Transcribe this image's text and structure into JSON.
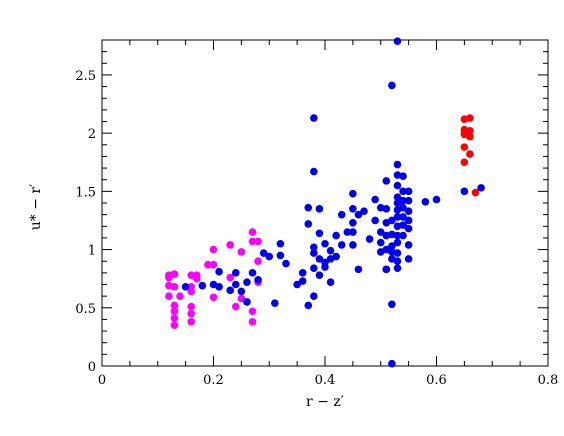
{
  "chart_data": {
    "type": "scatter",
    "title": "",
    "xlabel": "r − z′",
    "ylabel": "u* − r′",
    "xlim": [
      0,
      0.8
    ],
    "ylim": [
      0,
      2.8
    ],
    "x_ticks": [
      0,
      0.2,
      0.4,
      0.6,
      0.8
    ],
    "x_tick_labels": [
      "0",
      "0.2",
      "0.4",
      "0.6",
      "0.8"
    ],
    "y_ticks": [
      0,
      0.5,
      1,
      1.5,
      2,
      2.5
    ],
    "y_tick_labels": [
      "0",
      "0.5",
      "1",
      "1.5",
      "2",
      "2.5"
    ],
    "grid": false,
    "legend": "none",
    "series": [
      {
        "color": "#ff00ff",
        "points": [
          [
            0.12,
            0.78
          ],
          [
            0.12,
            0.76
          ],
          [
            0.13,
            0.79
          ],
          [
            0.12,
            0.69
          ],
          [
            0.13,
            0.68
          ],
          [
            0.12,
            0.6
          ],
          [
            0.14,
            0.6
          ],
          [
            0.13,
            0.52
          ],
          [
            0.13,
            0.47
          ],
          [
            0.13,
            0.41
          ],
          [
            0.13,
            0.35
          ],
          [
            0.16,
            0.78
          ],
          [
            0.17,
            0.78
          ],
          [
            0.16,
            0.68
          ],
          [
            0.16,
            0.64
          ],
          [
            0.16,
            0.51
          ],
          [
            0.16,
            0.45
          ],
          [
            0.16,
            0.38
          ],
          [
            0.17,
            0.75
          ],
          [
            0.19,
            0.87
          ],
          [
            0.2,
            0.87
          ],
          [
            0.2,
            1.0
          ],
          [
            0.2,
            0.59
          ],
          [
            0.23,
            1.04
          ],
          [
            0.23,
            0.76
          ],
          [
            0.24,
            0.51
          ],
          [
            0.25,
            0.98
          ],
          [
            0.25,
            0.58
          ],
          [
            0.27,
            1.15
          ],
          [
            0.27,
            1.07
          ],
          [
            0.28,
            1.07
          ],
          [
            0.27,
            0.47
          ],
          [
            0.27,
            0.38
          ],
          [
            0.28,
            0.72
          ],
          [
            0.28,
            0.9
          ]
        ]
      },
      {
        "color": "#0000ee",
        "points": [
          [
            0.15,
            0.68
          ],
          [
            0.18,
            0.69
          ],
          [
            0.2,
            0.7
          ],
          [
            0.21,
            0.81
          ],
          [
            0.21,
            0.68
          ],
          [
            0.23,
            0.65
          ],
          [
            0.24,
            0.8
          ],
          [
            0.24,
            0.7
          ],
          [
            0.25,
            0.64
          ],
          [
            0.26,
            0.72
          ],
          [
            0.26,
            0.55
          ],
          [
            0.27,
            0.8
          ],
          [
            0.28,
            0.74
          ],
          [
            0.29,
            0.97
          ],
          [
            0.3,
            0.94
          ],
          [
            0.31,
            0.54
          ],
          [
            0.32,
            1.05
          ],
          [
            0.32,
            0.95
          ],
          [
            0.33,
            0.88
          ],
          [
            0.35,
            0.7
          ],
          [
            0.36,
            0.8
          ],
          [
            0.36,
            0.73
          ],
          [
            0.37,
            1.36
          ],
          [
            0.37,
            1.22
          ],
          [
            0.37,
            0.52
          ],
          [
            0.38,
            2.13
          ],
          [
            0.38,
            1.67
          ],
          [
            0.38,
            1.02
          ],
          [
            0.38,
            0.97
          ],
          [
            0.38,
            0.84
          ],
          [
            0.38,
            0.6
          ],
          [
            0.39,
            1.35
          ],
          [
            0.39,
            1.14
          ],
          [
            0.39,
            0.92
          ],
          [
            0.39,
            0.78
          ],
          [
            0.4,
            1.05
          ],
          [
            0.4,
            0.89
          ],
          [
            0.4,
            0.85
          ],
          [
            0.41,
            0.99
          ],
          [
            0.41,
            0.92
          ],
          [
            0.41,
            0.72
          ],
          [
            0.42,
            1.12
          ],
          [
            0.42,
            0.94
          ],
          [
            0.43,
            1.3
          ],
          [
            0.43,
            1.04
          ],
          [
            0.44,
            1.15
          ],
          [
            0.45,
            1.48
          ],
          [
            0.45,
            1.35
          ],
          [
            0.45,
            1.23
          ],
          [
            0.45,
            1.15
          ],
          [
            0.45,
            1.04
          ],
          [
            0.46,
            0.83
          ],
          [
            0.46,
            1.3
          ],
          [
            0.47,
            1.33
          ],
          [
            0.48,
            1.09
          ],
          [
            0.49,
            1.43
          ],
          [
            0.49,
            1.25
          ],
          [
            0.5,
            1.36
          ],
          [
            0.5,
            1.15
          ],
          [
            0.5,
            1.06
          ],
          [
            0.5,
            0.98
          ],
          [
            0.51,
            0.83
          ],
          [
            0.51,
            1.0
          ],
          [
            0.51,
            0.83
          ],
          [
            0.51,
            1.12
          ],
          [
            0.51,
            1.23
          ],
          [
            0.51,
            1.59
          ],
          [
            0.51,
            1.35
          ],
          [
            0.52,
            1.25
          ],
          [
            0.52,
            1.13
          ],
          [
            0.52,
            1.03
          ],
          [
            0.52,
            0.98
          ],
          [
            0.52,
            0.92
          ],
          [
            0.52,
            2.41
          ],
          [
            0.52,
            0.53
          ],
          [
            0.52,
            0.02
          ],
          [
            0.53,
            2.79
          ],
          [
            0.53,
            1.73
          ],
          [
            0.53,
            1.64
          ],
          [
            0.53,
            1.55
          ],
          [
            0.53,
            1.45
          ],
          [
            0.53,
            1.4
          ],
          [
            0.53,
            1.34
          ],
          [
            0.53,
            1.28
          ],
          [
            0.53,
            1.2
          ],
          [
            0.53,
            1.12
          ],
          [
            0.53,
            1.06
          ],
          [
            0.53,
            0.97
          ],
          [
            0.53,
            0.9
          ],
          [
            0.53,
            0.84
          ],
          [
            0.54,
            1.63
          ],
          [
            0.54,
            1.5
          ],
          [
            0.54,
            1.42
          ],
          [
            0.54,
            1.36
          ],
          [
            0.54,
            1.28
          ],
          [
            0.54,
            1.21
          ],
          [
            0.54,
            1.12
          ],
          [
            0.55,
            1.5
          ],
          [
            0.55,
            1.42
          ],
          [
            0.55,
            1.33
          ],
          [
            0.55,
            1.25
          ],
          [
            0.55,
            1.18
          ],
          [
            0.55,
            1.04
          ],
          [
            0.55,
            0.92
          ],
          [
            0.58,
            1.41
          ],
          [
            0.6,
            1.43
          ],
          [
            0.65,
            1.5
          ],
          [
            0.68,
            1.53
          ]
        ]
      },
      {
        "color": "#ff0000",
        "points": [
          [
            0.65,
            2.12
          ],
          [
            0.66,
            2.13
          ],
          [
            0.65,
            2.03
          ],
          [
            0.66,
            2.02
          ],
          [
            0.65,
            1.99
          ],
          [
            0.66,
            1.97
          ],
          [
            0.65,
            1.88
          ],
          [
            0.66,
            1.82
          ],
          [
            0.65,
            1.75
          ],
          [
            0.67,
            1.49
          ]
        ]
      }
    ]
  }
}
